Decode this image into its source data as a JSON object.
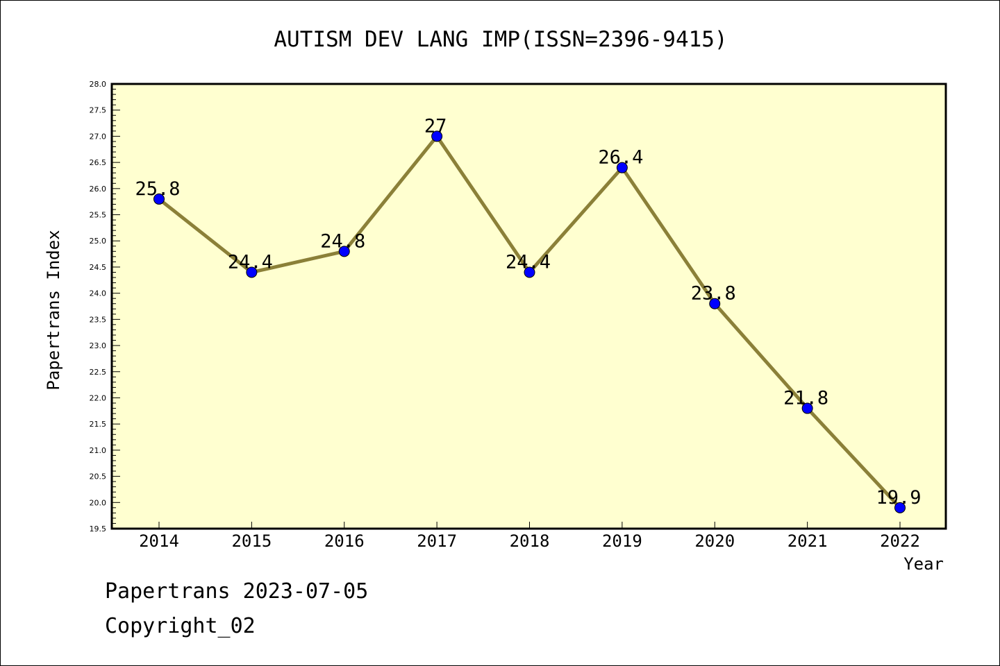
{
  "chart_data": {
    "type": "line",
    "title": "AUTISM DEV LANG IMP(ISSN=2396-9415)",
    "xlabel": "Year",
    "ylabel": "Papertrans Index",
    "x": [
      "2014",
      "2015",
      "2016",
      "2017",
      "2018",
      "2019",
      "2020",
      "2021",
      "2022"
    ],
    "values": [
      25.8,
      24.4,
      24.8,
      27,
      24.4,
      26.4,
      23.8,
      21.8,
      19.9
    ],
    "data_labels": [
      "25.8",
      "24.4",
      "24.8",
      "27",
      "24.4",
      "26.4",
      "23.8",
      "21.8",
      "19.9"
    ],
    "ylim": [
      19.5,
      28.0
    ],
    "y_major_step": 0.5,
    "y_tick_labels": [
      "19.5",
      "20.0",
      "20.5",
      "21.0",
      "21.5",
      "22.0",
      "22.5",
      "23.0",
      "23.5",
      "24.0",
      "24.5",
      "25.0",
      "25.5",
      "26.0",
      "26.5",
      "27.0",
      "27.5",
      "28.0"
    ],
    "grid": false,
    "colors": {
      "plot_background": "#ffffd0",
      "line": "#8b8038",
      "marker": "#0000ff"
    }
  },
  "footer": {
    "line1": "Papertrans 2023-07-05",
    "line2": "Copyright_02"
  }
}
